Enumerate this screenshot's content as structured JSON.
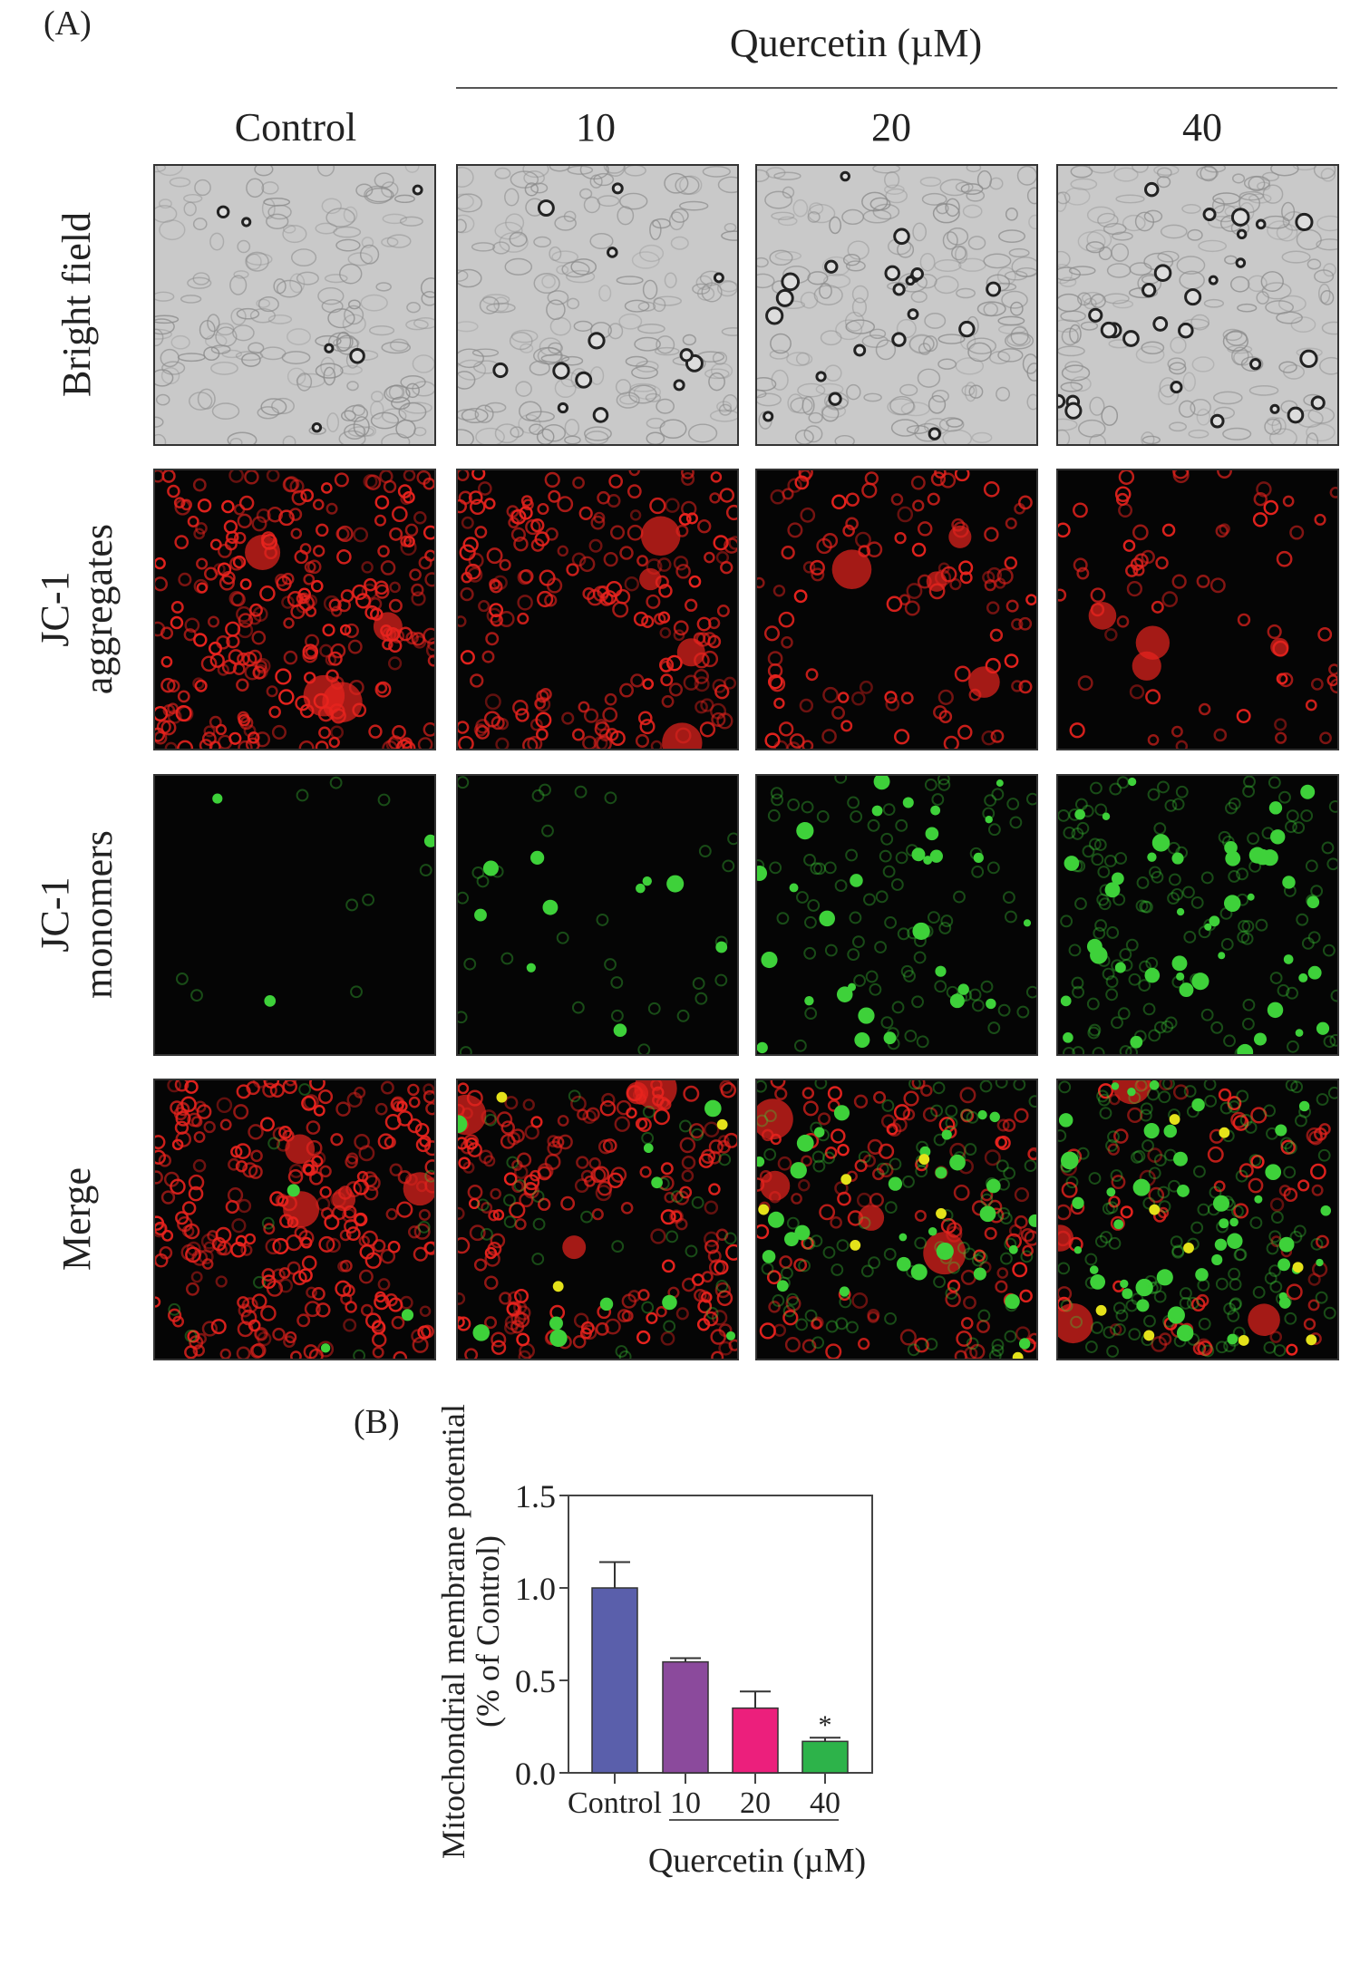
{
  "panel_a": {
    "label": "(A)",
    "treatment_header": "Quercetin (µM)",
    "columns": [
      "Control",
      "10",
      "20",
      "40"
    ],
    "rows": [
      {
        "label_lines": [
          "Bright field"
        ],
        "type": "brightfield"
      },
      {
        "label_lines": [
          "JC-1",
          "aggregates"
        ],
        "type": "red"
      },
      {
        "label_lines": [
          "JC-1",
          "monomers"
        ],
        "type": "green"
      },
      {
        "label_lines": [
          "Merge"
        ],
        "type": "merge"
      }
    ],
    "colors": {
      "aggregates": "#e8231e",
      "monomers": "#3ed13a",
      "brightfield": "#c8c8c8"
    }
  },
  "panel_b": {
    "label": "(B)"
  },
  "chart_data": {
    "type": "bar",
    "categories": [
      "Control",
      "10",
      "20",
      "40"
    ],
    "values": [
      1.0,
      0.6,
      0.35,
      0.17
    ],
    "errors": [
      0.14,
      0.02,
      0.09,
      0.02
    ],
    "significance": [
      "",
      "",
      "",
      "*"
    ],
    "colors": [
      "#5a5fab",
      "#8b4a9c",
      "#ec1f7c",
      "#2db34a"
    ],
    "ylabel_lines": [
      "Mitochondrial membrane potential",
      "(% of Control)"
    ],
    "xlabel": "Quercetin (µM)",
    "ylim": [
      0,
      1.5
    ],
    "yticks": [
      "0.0",
      "0.5",
      "1.0",
      "1.5"
    ],
    "grid": false
  }
}
